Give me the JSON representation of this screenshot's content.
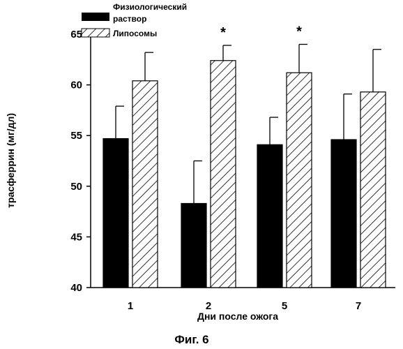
{
  "chart_data": {
    "type": "bar",
    "categories": [
      "1",
      "2",
      "5",
      "7"
    ],
    "series": [
      {
        "name": "Физиологический раствор",
        "legend_lines": [
          "Физиологический",
          "раствор"
        ],
        "fill": "solid-black",
        "values": [
          54.7,
          48.3,
          54.1,
          54.6
        ],
        "error_upper": [
          57.9,
          52.5,
          56.8,
          59.1
        ]
      },
      {
        "name": "Липосомы",
        "legend_lines": [
          "Липосомы"
        ],
        "fill": "diagonal-hatch",
        "values": [
          60.4,
          62.4,
          61.2,
          59.3
        ],
        "error_upper": [
          63.2,
          63.9,
          64.0,
          63.5
        ]
      }
    ],
    "significance_markers": [
      {
        "category": "2",
        "series": "Липосомы",
        "symbol": "*"
      },
      {
        "category": "5",
        "series": "Липосомы",
        "symbol": "*"
      }
    ],
    "xlabel": "Дни после ожога",
    "ylabel": "трасферрин (мг/дл)",
    "ylim": [
      40,
      65
    ],
    "yticks": [
      40,
      45,
      50,
      55,
      60,
      65
    ],
    "grid": false,
    "legend_position": "top-left"
  },
  "caption": "Фиг. 6",
  "colors": {
    "bar": "#000000",
    "background": "#ffffff"
  }
}
